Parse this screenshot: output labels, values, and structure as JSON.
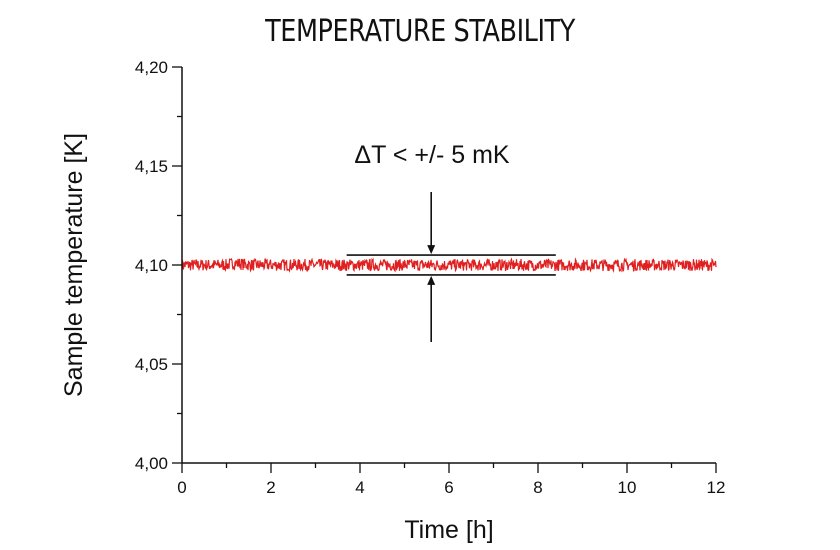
{
  "chart_data": {
    "type": "line",
    "title": "TEMPERATURE STABILITY",
    "xlabel": "Time [h]",
    "ylabel": "Sample temperature [K]",
    "xlim": [
      0,
      12
    ],
    "ylim": [
      4.0,
      4.2
    ],
    "xticks": [
      "0",
      "2",
      "4",
      "6",
      "8",
      "10",
      "12"
    ],
    "yticks": [
      "4,00",
      "4,05",
      "4,10",
      "4,15",
      "4,20"
    ],
    "grid": false,
    "series": [
      {
        "color": "#e02020",
        "x": [
          0,
          0.5,
          1,
          1.2,
          1.5,
          2,
          2.5,
          3,
          3.5,
          4,
          4.5,
          5,
          5.5,
          6,
          6.5,
          7,
          7.5,
          8,
          8.5,
          9,
          9.5,
          10,
          10.5,
          11,
          11.5,
          12
        ],
        "y": [
          4.1,
          4.1,
          4.1,
          4.101,
          4.1,
          4.1,
          4.1,
          4.1,
          4.1,
          4.1,
          4.1,
          4.1,
          4.1,
          4.1,
          4.1,
          4.1,
          4.1,
          4.1,
          4.1,
          4.1,
          4.1,
          4.1,
          4.1,
          4.1,
          4.1,
          4.1
        ],
        "noise_amplitude_K": 0.003
      }
    ],
    "annotation": {
      "text": "ΔT < +/- 5 mK",
      "band_upper": 4.105,
      "band_lower": 4.095,
      "band_x": [
        3.7,
        8.4
      ],
      "arrow_x": 5.6
    }
  }
}
